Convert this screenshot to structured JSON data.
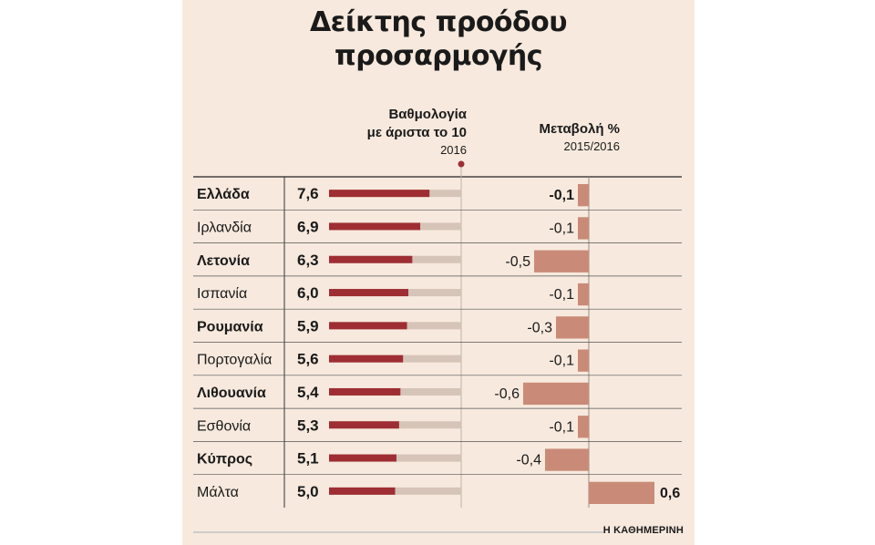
{
  "title_line1": "Δείκτης προόδου",
  "title_line2": "προσαρμογής",
  "score_header": {
    "line1": "Βαθμολογία",
    "line2_prefix": "με άριστα το ",
    "line2_bold": "10",
    "year": "2016"
  },
  "change_header": {
    "line1": "Μεταβολή %",
    "year": "2015/2016"
  },
  "source": "Η ΚΑΘΗΜΕΡΙΝΗ",
  "colors": {
    "score_bar": "#9e2e33",
    "score_track": "#d6c4b8",
    "change_bar": "#c98b78",
    "panel": "#f7e9dd"
  },
  "chart_data": {
    "type": "bar",
    "categories": [
      "Ελλάδα",
      "Ιρλανδία",
      "Λετονία",
      "Ισπανία",
      "Ρουμανία",
      "Πορτογαλία",
      "Λιθουανία",
      "Εσθονία",
      "Κύπρος",
      "Μάλτα"
    ],
    "bold_categories": [
      "Ελλάδα",
      "Λετονία",
      "Ρουμανία",
      "Λιθουανία",
      "Κύπρος"
    ],
    "series": [
      {
        "name": "Βαθμολογία με άριστα το 10 2016",
        "values": [
          7.6,
          6.9,
          6.3,
          6.0,
          5.9,
          5.6,
          5.4,
          5.3,
          5.1,
          5.0
        ],
        "labels": [
          "7,6",
          "6,9",
          "6,3",
          "6,0",
          "5,9",
          "5,6",
          "5,4",
          "5,3",
          "5,1",
          "5,0"
        ],
        "xlim": [
          0,
          10
        ]
      },
      {
        "name": "Μεταβολή % 2015/2016",
        "values": [
          -0.1,
          -0.1,
          -0.5,
          -0.1,
          -0.3,
          -0.1,
          -0.6,
          -0.1,
          -0.4,
          0.6
        ],
        "labels": [
          "-0,1",
          "-0,1",
          "-0,5",
          "-0,1",
          "-0,3",
          "-0,1",
          "-0,6",
          "-0,1",
          "-0,4",
          "0,6"
        ]
      }
    ]
  }
}
